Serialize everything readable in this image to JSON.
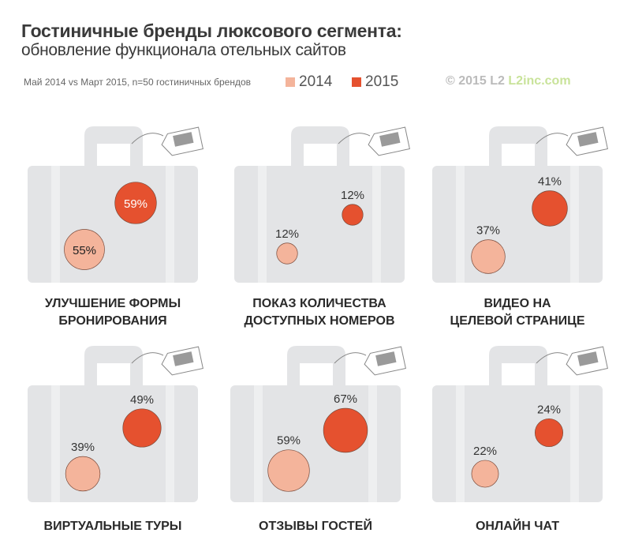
{
  "header": {
    "title": "Гостиничные бренды люксового сегмента:",
    "subtitle": "обновление функционала отельных сайтов",
    "note": "Май 2014 vs Март 2015, n=50 гостиничных брендов",
    "copyright": "© 2015 L2",
    "site": "L2inc.com"
  },
  "chart_data": {
    "type": "bubble",
    "legend": [
      {
        "name": "2014",
        "color": "#f4b49b"
      },
      {
        "name": "2015",
        "color": "#e5512f"
      }
    ],
    "legend_position": "top",
    "panels": [
      {
        "label": "УЛУЧШЕНИЕ ФОРМЫ БРОНИРОВАНИЯ",
        "icon": "list-icon",
        "v2014": 55,
        "v2015": 59,
        "t2014": "55%",
        "t2015": "59%"
      },
      {
        "label": "ПОКАЗ КОЛИЧЕСТВА ДОСТУПНЫХ НОМЕРОВ",
        "icon": "calendar-icon",
        "v2014": 12,
        "v2015": 12,
        "t2014": "12%",
        "t2015": "12%"
      },
      {
        "label": "ВИДЕО  НА ЦЕЛЕВОЙ СТРАНИЦЕ",
        "icon": "video-camera-icon",
        "v2014": 37,
        "v2015": 41,
        "t2014": "37%",
        "t2015": "41%"
      },
      {
        "label": "ВИРТУАЛЬНЫЕ ТУРЫ",
        "icon": "rotate-icon",
        "v2014": 39,
        "v2015": 49,
        "t2014": "39%",
        "t2015": "49%"
      },
      {
        "label": "ОТЗЫВЫ ГОСТЕЙ",
        "icon": "stars-icon",
        "v2014": 59,
        "v2015": 67,
        "t2014": "59%",
        "t2015": "67%"
      },
      {
        "label": "ОНЛАЙН ЧАТ",
        "icon": "chat-icon",
        "v2014": 22,
        "v2015": 24,
        "t2014": "22%",
        "t2015": "24%"
      }
    ]
  }
}
